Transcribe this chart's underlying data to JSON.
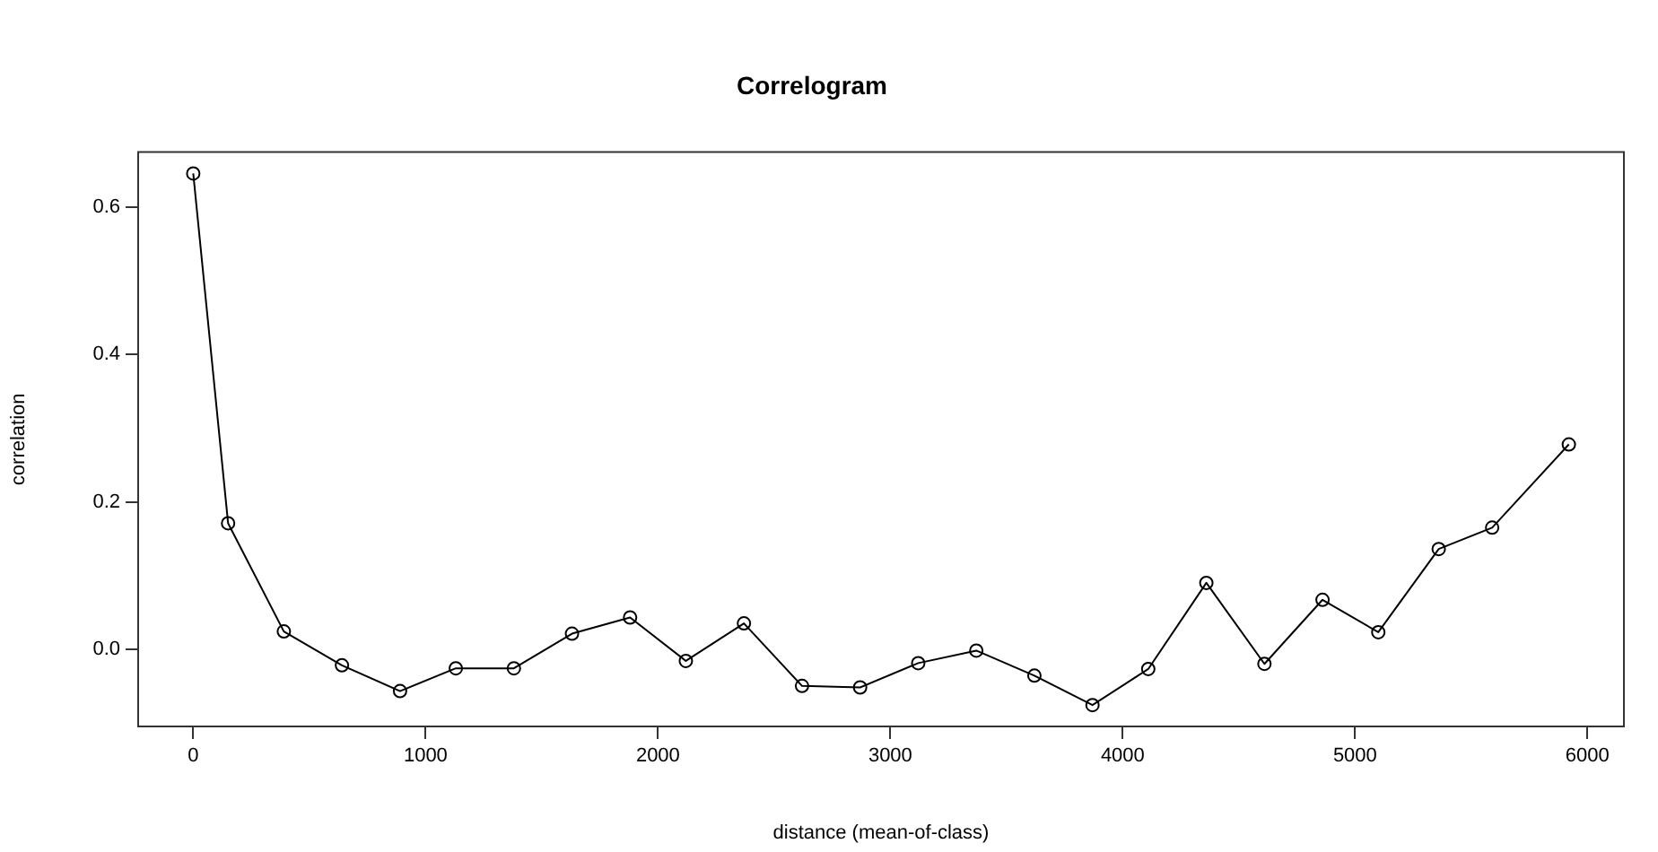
{
  "chart_data": {
    "type": "line",
    "title": "Correlogram",
    "xlabel": "distance (mean-of-class)",
    "ylabel": "correlation",
    "x": [
      0,
      150,
      390,
      640,
      890,
      1130,
      1380,
      1630,
      1880,
      2120,
      2370,
      2620,
      2870,
      3120,
      3370,
      3620,
      3870,
      4110,
      4360,
      4610,
      4860,
      5100,
      5360,
      5590,
      5920
    ],
    "series": [
      {
        "color": "#000000",
        "values": [
          0.646,
          0.171,
          0.024,
          -0.022,
          -0.057,
          -0.026,
          -0.026,
          0.021,
          0.043,
          -0.016,
          0.035,
          -0.05,
          -0.052,
          -0.019,
          -0.002,
          -0.036,
          -0.076,
          -0.027,
          0.09,
          -0.02,
          0.067,
          0.023,
          0.136,
          0.165,
          0.278
        ]
      }
    ],
    "xlim": [
      -237,
      6157
    ],
    "xticks": [
      0,
      1000,
      2000,
      3000,
      4000,
      5000,
      6000
    ],
    "ylim": [
      -0.105,
      0.675
    ],
    "yticks": [
      {
        "value": 0,
        "label": "0.0"
      },
      0.2,
      0.4,
      0.6
    ],
    "grid": false,
    "legend": false,
    "marker": "circle",
    "line_style": "solid"
  }
}
